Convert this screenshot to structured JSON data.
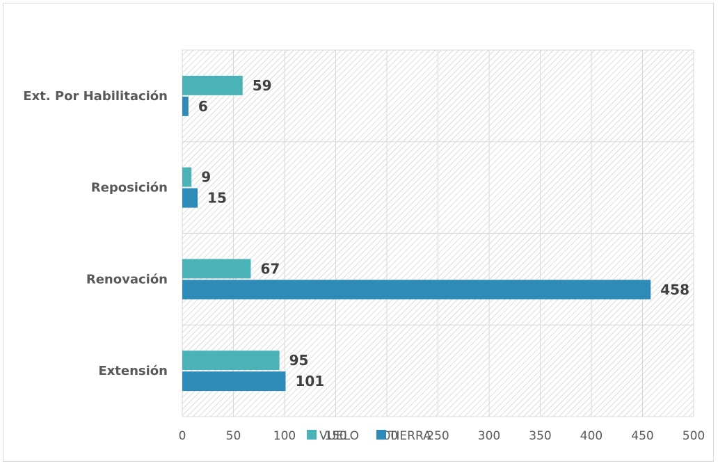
{
  "chart_data": {
    "type": "bar",
    "orientation": "horizontal",
    "title": "",
    "xlabel": "",
    "ylabel": "",
    "categories": [
      "Ext. Por Habilitación",
      "Reposición",
      "Renovación",
      "Extensión"
    ],
    "series": [
      {
        "name": "VUELO",
        "color": "#4bb3b8",
        "values": [
          59,
          9,
          67,
          95
        ]
      },
      {
        "name": "TIERRA",
        "color": "#2e8bb8",
        "values": [
          6,
          15,
          458,
          101
        ]
      }
    ],
    "xlim": [
      0,
      500
    ],
    "xticks": [
      0,
      50,
      100,
      150,
      200,
      250,
      300,
      350,
      400,
      450,
      500
    ],
    "grid": true,
    "legend_position": "bottom"
  }
}
